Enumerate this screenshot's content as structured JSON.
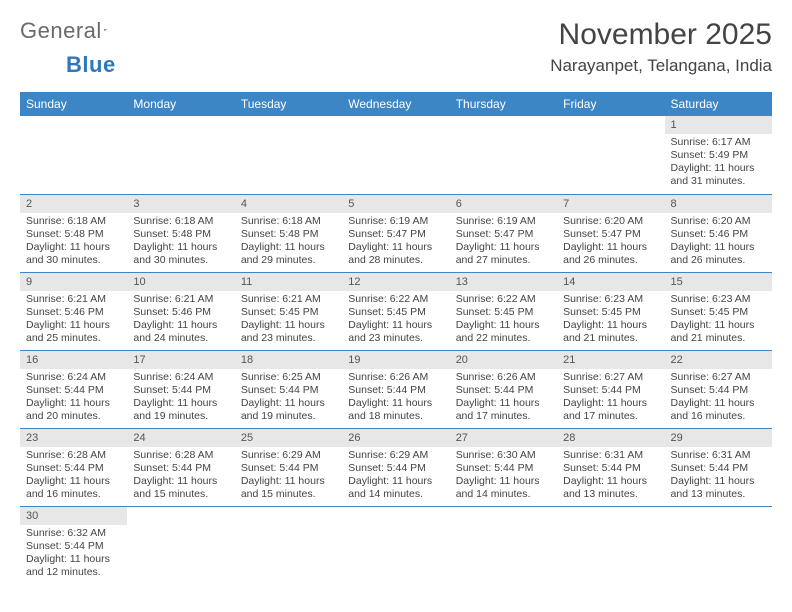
{
  "logo": {
    "text1": "General",
    "text2": "Blue"
  },
  "title": "November 2025",
  "location": "Narayanpet, Telangana, India",
  "colors": {
    "header_bg": "#3d86c6",
    "header_text": "#ffffff",
    "daynum_bg": "#e7e7e7",
    "row_divider": "#3d86c6",
    "logo_gray": "#6a6a6a",
    "logo_blue": "#2f77bb",
    "body_text": "#444444"
  },
  "day_headers": [
    "Sunday",
    "Monday",
    "Tuesday",
    "Wednesday",
    "Thursday",
    "Friday",
    "Saturday"
  ],
  "weeks": [
    [
      null,
      null,
      null,
      null,
      null,
      null,
      {
        "n": "1",
        "sr": "Sunrise: 6:17 AM",
        "ss": "Sunset: 5:49 PM",
        "dl": "Daylight: 11 hours and 31 minutes."
      }
    ],
    [
      {
        "n": "2",
        "sr": "Sunrise: 6:18 AM",
        "ss": "Sunset: 5:48 PM",
        "dl": "Daylight: 11 hours and 30 minutes."
      },
      {
        "n": "3",
        "sr": "Sunrise: 6:18 AM",
        "ss": "Sunset: 5:48 PM",
        "dl": "Daylight: 11 hours and 30 minutes."
      },
      {
        "n": "4",
        "sr": "Sunrise: 6:18 AM",
        "ss": "Sunset: 5:48 PM",
        "dl": "Daylight: 11 hours and 29 minutes."
      },
      {
        "n": "5",
        "sr": "Sunrise: 6:19 AM",
        "ss": "Sunset: 5:47 PM",
        "dl": "Daylight: 11 hours and 28 minutes."
      },
      {
        "n": "6",
        "sr": "Sunrise: 6:19 AM",
        "ss": "Sunset: 5:47 PM",
        "dl": "Daylight: 11 hours and 27 minutes."
      },
      {
        "n": "7",
        "sr": "Sunrise: 6:20 AM",
        "ss": "Sunset: 5:47 PM",
        "dl": "Daylight: 11 hours and 26 minutes."
      },
      {
        "n": "8",
        "sr": "Sunrise: 6:20 AM",
        "ss": "Sunset: 5:46 PM",
        "dl": "Daylight: 11 hours and 26 minutes."
      }
    ],
    [
      {
        "n": "9",
        "sr": "Sunrise: 6:21 AM",
        "ss": "Sunset: 5:46 PM",
        "dl": "Daylight: 11 hours and 25 minutes."
      },
      {
        "n": "10",
        "sr": "Sunrise: 6:21 AM",
        "ss": "Sunset: 5:46 PM",
        "dl": "Daylight: 11 hours and 24 minutes."
      },
      {
        "n": "11",
        "sr": "Sunrise: 6:21 AM",
        "ss": "Sunset: 5:45 PM",
        "dl": "Daylight: 11 hours and 23 minutes."
      },
      {
        "n": "12",
        "sr": "Sunrise: 6:22 AM",
        "ss": "Sunset: 5:45 PM",
        "dl": "Daylight: 11 hours and 23 minutes."
      },
      {
        "n": "13",
        "sr": "Sunrise: 6:22 AM",
        "ss": "Sunset: 5:45 PM",
        "dl": "Daylight: 11 hours and 22 minutes."
      },
      {
        "n": "14",
        "sr": "Sunrise: 6:23 AM",
        "ss": "Sunset: 5:45 PM",
        "dl": "Daylight: 11 hours and 21 minutes."
      },
      {
        "n": "15",
        "sr": "Sunrise: 6:23 AM",
        "ss": "Sunset: 5:45 PM",
        "dl": "Daylight: 11 hours and 21 minutes."
      }
    ],
    [
      {
        "n": "16",
        "sr": "Sunrise: 6:24 AM",
        "ss": "Sunset: 5:44 PM",
        "dl": "Daylight: 11 hours and 20 minutes."
      },
      {
        "n": "17",
        "sr": "Sunrise: 6:24 AM",
        "ss": "Sunset: 5:44 PM",
        "dl": "Daylight: 11 hours and 19 minutes."
      },
      {
        "n": "18",
        "sr": "Sunrise: 6:25 AM",
        "ss": "Sunset: 5:44 PM",
        "dl": "Daylight: 11 hours and 19 minutes."
      },
      {
        "n": "19",
        "sr": "Sunrise: 6:26 AM",
        "ss": "Sunset: 5:44 PM",
        "dl": "Daylight: 11 hours and 18 minutes."
      },
      {
        "n": "20",
        "sr": "Sunrise: 6:26 AM",
        "ss": "Sunset: 5:44 PM",
        "dl": "Daylight: 11 hours and 17 minutes."
      },
      {
        "n": "21",
        "sr": "Sunrise: 6:27 AM",
        "ss": "Sunset: 5:44 PM",
        "dl": "Daylight: 11 hours and 17 minutes."
      },
      {
        "n": "22",
        "sr": "Sunrise: 6:27 AM",
        "ss": "Sunset: 5:44 PM",
        "dl": "Daylight: 11 hours and 16 minutes."
      }
    ],
    [
      {
        "n": "23",
        "sr": "Sunrise: 6:28 AM",
        "ss": "Sunset: 5:44 PM",
        "dl": "Daylight: 11 hours and 16 minutes."
      },
      {
        "n": "24",
        "sr": "Sunrise: 6:28 AM",
        "ss": "Sunset: 5:44 PM",
        "dl": "Daylight: 11 hours and 15 minutes."
      },
      {
        "n": "25",
        "sr": "Sunrise: 6:29 AM",
        "ss": "Sunset: 5:44 PM",
        "dl": "Daylight: 11 hours and 15 minutes."
      },
      {
        "n": "26",
        "sr": "Sunrise: 6:29 AM",
        "ss": "Sunset: 5:44 PM",
        "dl": "Daylight: 11 hours and 14 minutes."
      },
      {
        "n": "27",
        "sr": "Sunrise: 6:30 AM",
        "ss": "Sunset: 5:44 PM",
        "dl": "Daylight: 11 hours and 14 minutes."
      },
      {
        "n": "28",
        "sr": "Sunrise: 6:31 AM",
        "ss": "Sunset: 5:44 PM",
        "dl": "Daylight: 11 hours and 13 minutes."
      },
      {
        "n": "29",
        "sr": "Sunrise: 6:31 AM",
        "ss": "Sunset: 5:44 PM",
        "dl": "Daylight: 11 hours and 13 minutes."
      }
    ],
    [
      {
        "n": "30",
        "sr": "Sunrise: 6:32 AM",
        "ss": "Sunset: 5:44 PM",
        "dl": "Daylight: 11 hours and 12 minutes."
      },
      null,
      null,
      null,
      null,
      null,
      null
    ]
  ]
}
